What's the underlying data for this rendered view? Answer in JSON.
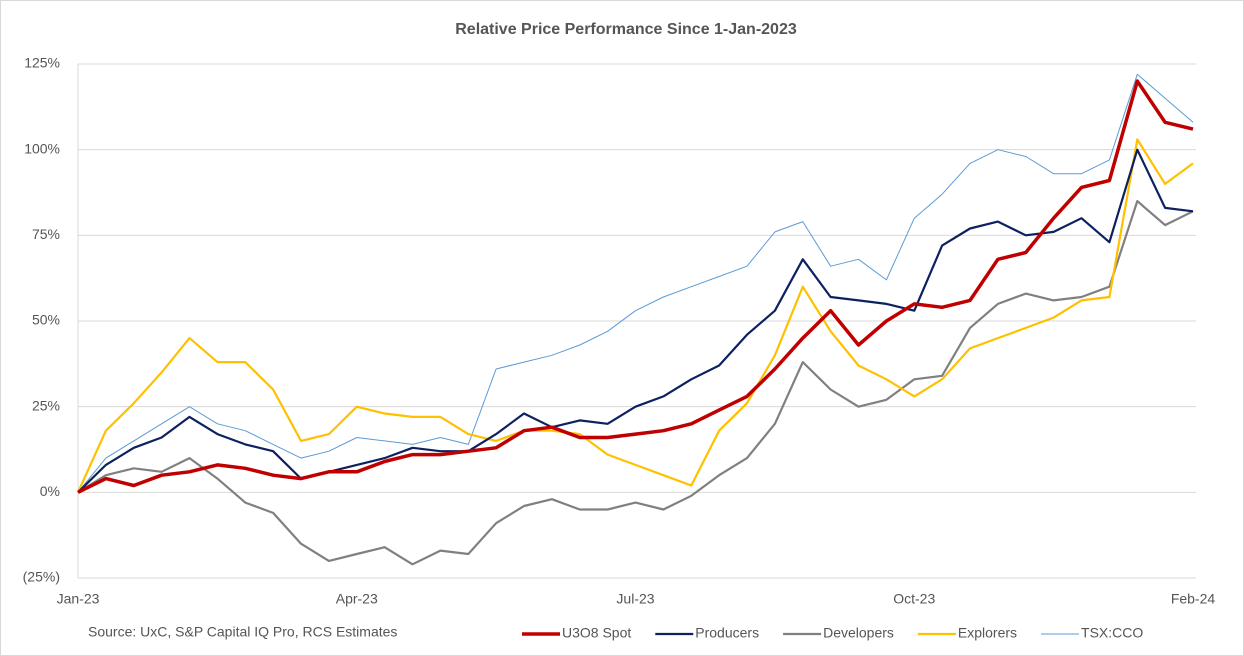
{
  "chart_data": {
    "type": "line",
    "title": "Relative Price Performance Since 1-Jan-2023",
    "source": "Source: UxC, S&P Capital IQ Pro, RCS Estimates",
    "categories": [
      "Jan-23",
      null,
      null,
      null,
      null,
      null,
      null,
      null,
      null,
      null,
      "Apr-23",
      null,
      null,
      null,
      null,
      null,
      null,
      null,
      null,
      null,
      "Jul-23",
      null,
      null,
      null,
      null,
      null,
      null,
      null,
      null,
      null,
      "Oct-23",
      null,
      null,
      null,
      null,
      null,
      null,
      null,
      null,
      null,
      "Feb-24"
    ],
    "ylim": [
      -25,
      125
    ],
    "yticks": [
      {
        "value": -25,
        "label": "(25%)"
      },
      {
        "value": 0,
        "label": "0%"
      },
      {
        "value": 25,
        "label": "25%"
      },
      {
        "value": 50,
        "label": "50%"
      },
      {
        "value": 75,
        "label": "75%"
      },
      {
        "value": 100,
        "label": "100%"
      },
      {
        "value": 125,
        "label": "125%"
      }
    ],
    "grid": true,
    "series": [
      {
        "name": "U3O8 Spot",
        "color": "#c00000",
        "width": 3.5,
        "values": [
          0,
          4,
          2,
          5,
          6,
          8,
          7,
          5,
          4,
          6,
          6,
          9,
          11,
          11,
          12,
          13,
          18,
          19,
          16,
          16,
          17,
          18,
          20,
          24,
          28,
          36,
          45,
          53,
          43,
          50,
          55,
          54,
          56,
          68,
          70,
          80,
          89,
          91,
          120,
          108,
          106
        ]
      },
      {
        "name": "Producers",
        "color": "#0d2160",
        "width": 2.2,
        "values": [
          0,
          8,
          13,
          16,
          22,
          17,
          14,
          12,
          4,
          6,
          8,
          10,
          13,
          12,
          12,
          17,
          23,
          19,
          21,
          20,
          25,
          28,
          33,
          37,
          46,
          53,
          68,
          57,
          56,
          55,
          53,
          72,
          77,
          79,
          75,
          76,
          80,
          73,
          100,
          83,
          82
        ]
      },
      {
        "name": "Developers",
        "color": "#808080",
        "width": 2.2,
        "values": [
          0,
          5,
          7,
          6,
          10,
          4,
          -3,
          -6,
          -15,
          -20,
          -18,
          -16,
          -21,
          -17,
          -18,
          -9,
          -4,
          -2,
          -5,
          -5,
          -3,
          -5,
          -1,
          5,
          10,
          20,
          38,
          30,
          25,
          27,
          33,
          34,
          48,
          55,
          58,
          56,
          57,
          60,
          85,
          78,
          82
        ]
      },
      {
        "name": "Explorers",
        "color": "#ffc000",
        "width": 2.2,
        "values": [
          0,
          18,
          26,
          35,
          45,
          38,
          38,
          30,
          15,
          17,
          25,
          23,
          22,
          22,
          17,
          15,
          18,
          18,
          17,
          11,
          8,
          5,
          2,
          18,
          26,
          40,
          60,
          47,
          37,
          33,
          28,
          33,
          42,
          45,
          48,
          51,
          56,
          57,
          103,
          90,
          96
        ]
      },
      {
        "name": "TSX:CCO",
        "color": "#5b9bd5",
        "width": 1,
        "values": [
          0,
          10,
          15,
          20,
          25,
          20,
          18,
          14,
          10,
          12,
          16,
          15,
          14,
          16,
          14,
          36,
          38,
          40,
          43,
          47,
          53,
          57,
          60,
          63,
          66,
          76,
          79,
          66,
          68,
          62,
          80,
          87,
          96,
          100,
          98,
          93,
          93,
          97,
          122,
          115,
          108
        ]
      }
    ]
  }
}
